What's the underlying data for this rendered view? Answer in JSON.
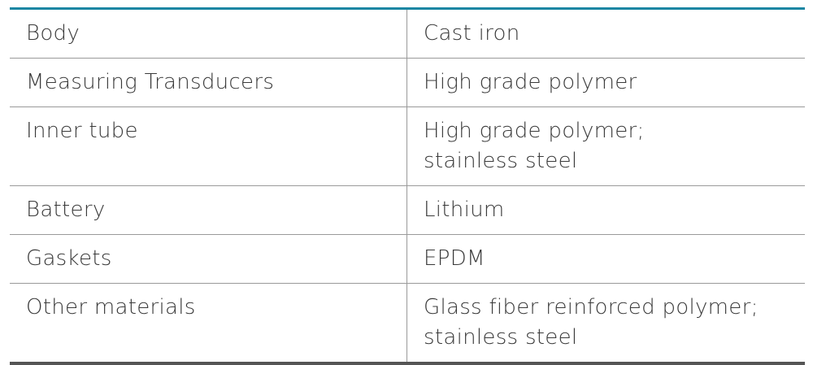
{
  "table": {
    "rows": [
      [
        "Body",
        "Cast iron"
      ],
      [
        "Measuring Transducers",
        "High grade polymer"
      ],
      [
        "Inner tube",
        "High grade polymer;\nstainless steel"
      ],
      [
        "Battery",
        "Lithium"
      ],
      [
        "Gaskets",
        "EPDM"
      ],
      [
        "Other materials",
        "Glass fiber reinforced polymer;\nstainless steel"
      ]
    ]
  }
}
